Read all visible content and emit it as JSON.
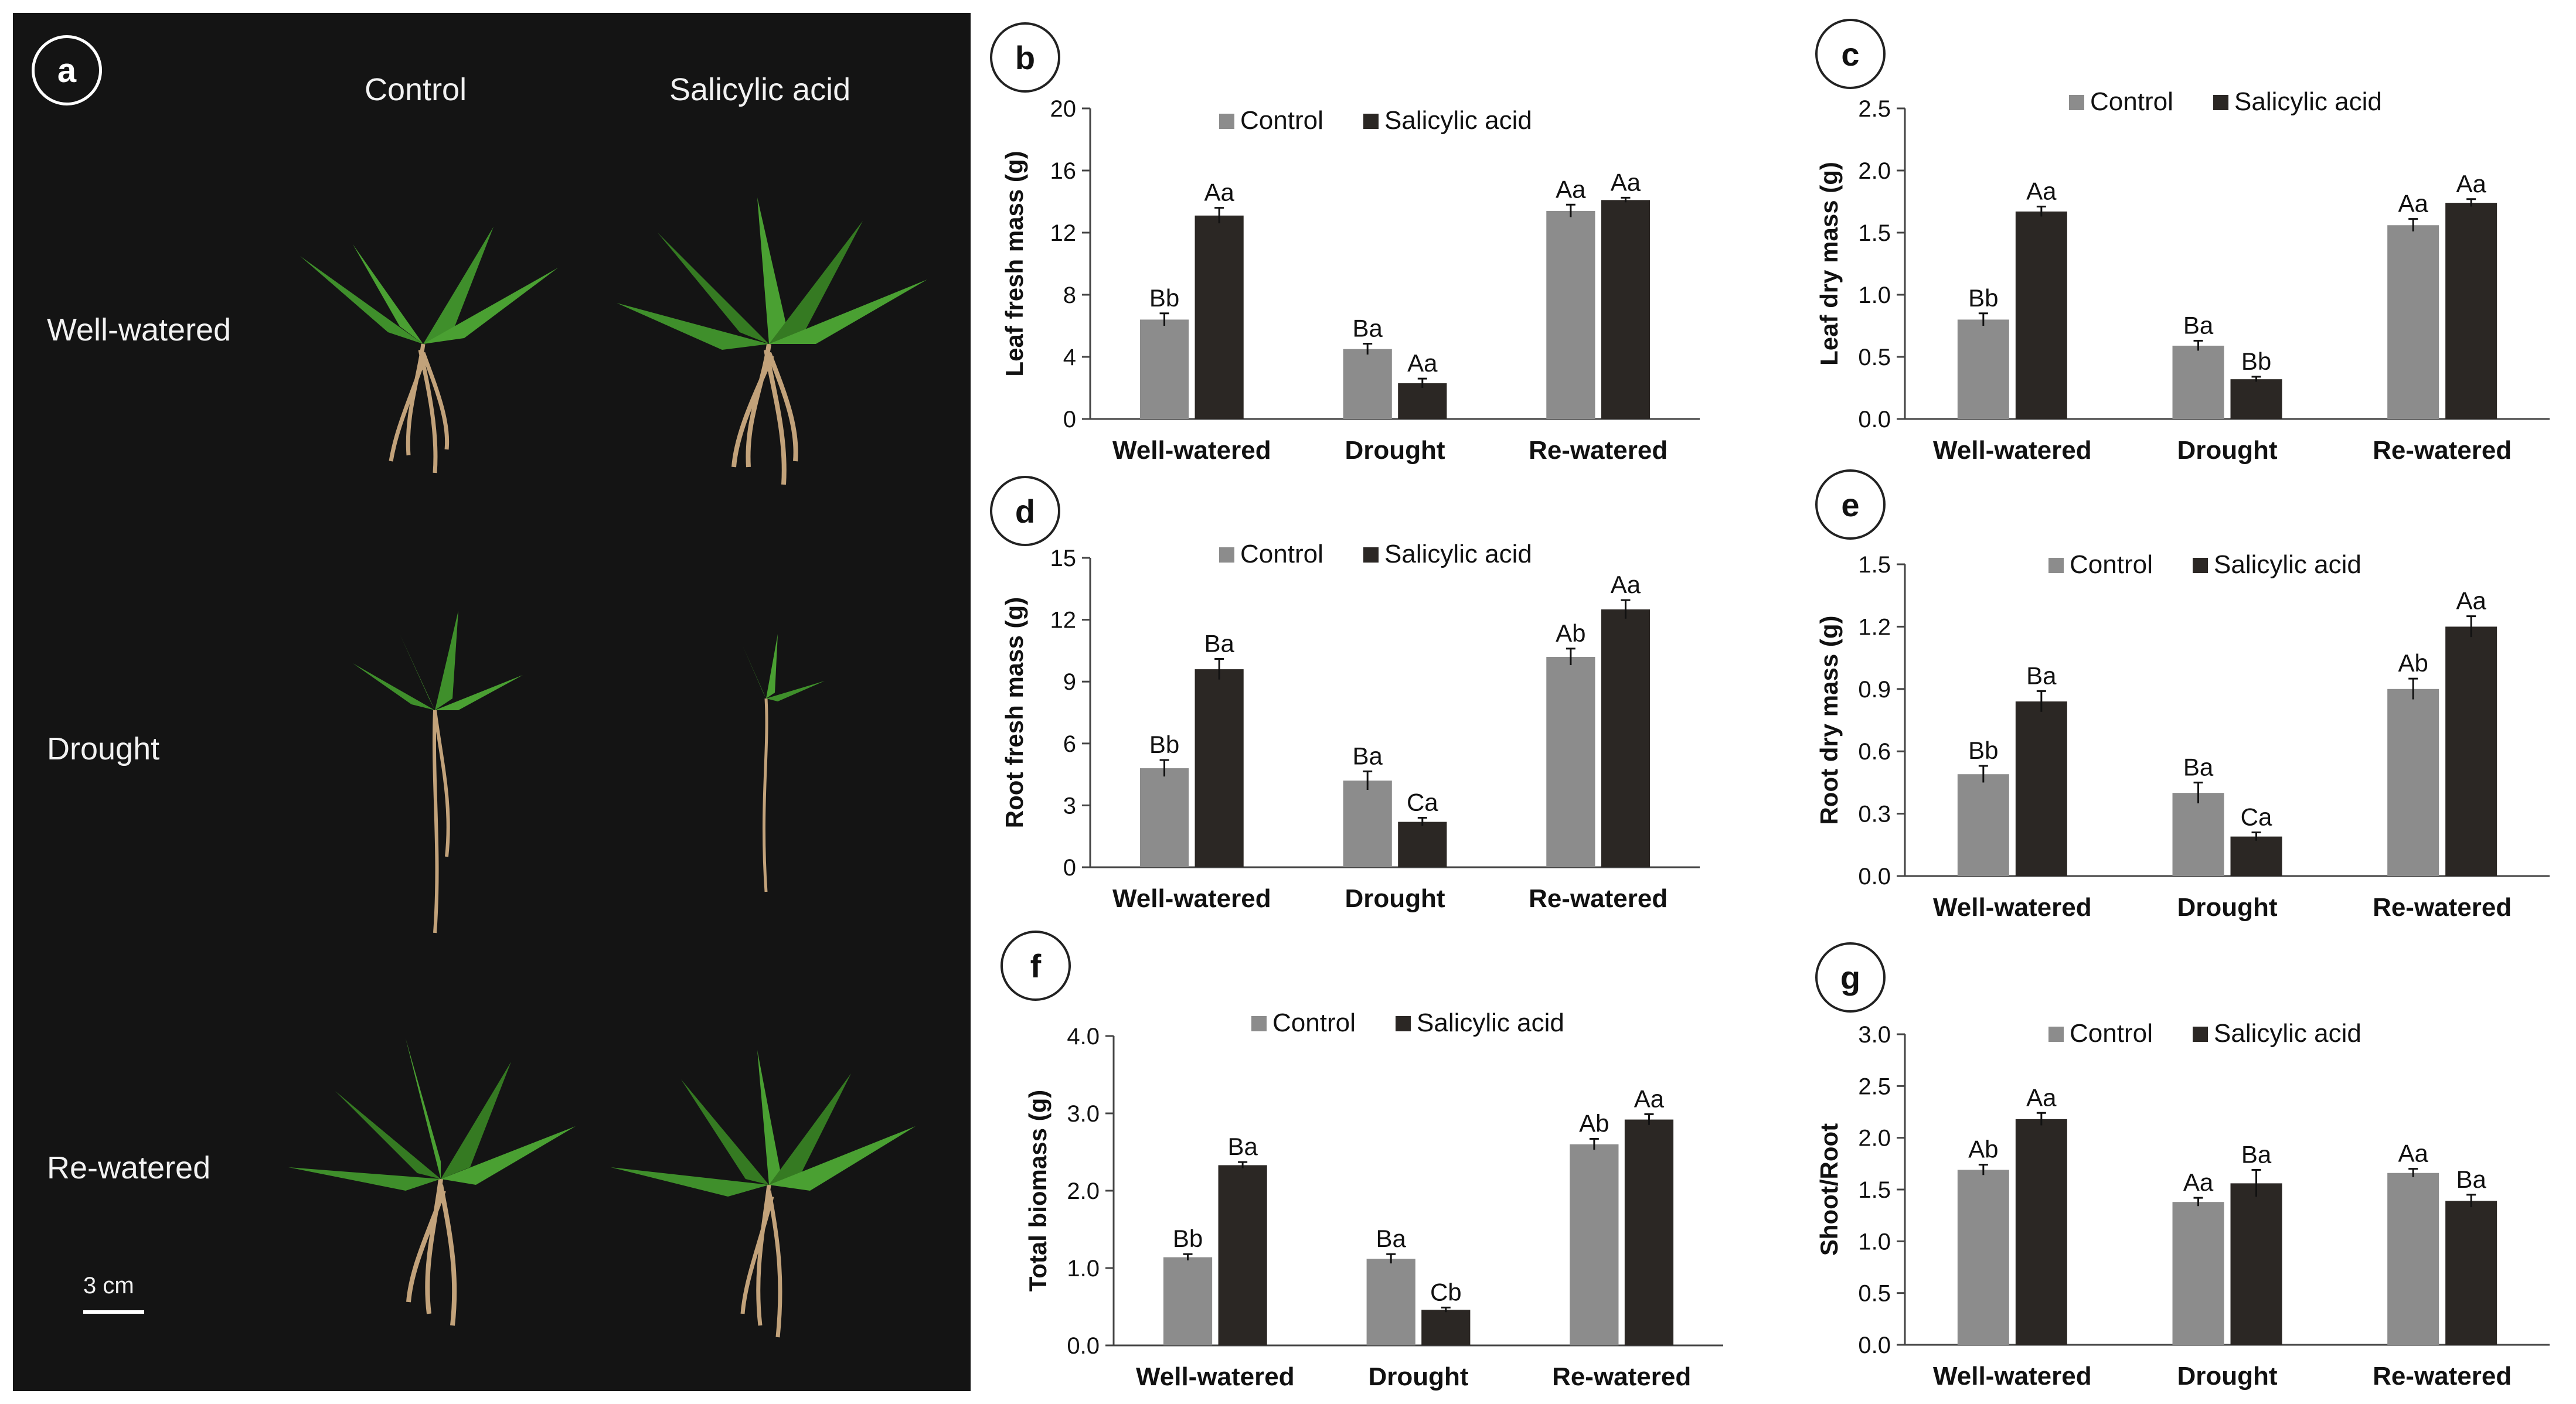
{
  "figure": {
    "photo_panel": {
      "badge": "a",
      "columns": [
        "Control",
        "Salicylic acid"
      ],
      "rows": [
        "Well-watered",
        "Drought",
        "Re-watered"
      ],
      "scale_bar": "3 cm"
    }
  },
  "colors": {
    "control": "#8c8c8c",
    "salicylic": "#2b2724",
    "photo_bg": "#141414",
    "leaf": "#3f8f2b",
    "root": "#c2a27a"
  },
  "chart_data": [
    {
      "badge": "b",
      "type": "bar",
      "categories": [
        "Well-watered",
        "Drought",
        "Re-watered"
      ],
      "series": [
        {
          "name": "Control",
          "values": [
            6.4,
            4.5,
            13.4
          ],
          "errors": [
            0.4,
            0.35,
            0.4
          ],
          "labels": [
            "Bb",
            "Ba",
            "Aa"
          ]
        },
        {
          "name": "Salicylic acid",
          "values": [
            13.1,
            2.3,
            14.1
          ],
          "errors": [
            0.5,
            0.3,
            0.15
          ],
          "labels": [
            "Aa",
            "Aa",
            "Aa"
          ]
        }
      ],
      "ylabel": "Leaf fresh mass (g)",
      "ylim": [
        0,
        20
      ],
      "yticks": [
        "0",
        "4",
        "8",
        "12",
        "16",
        "20"
      ]
    },
    {
      "badge": "c",
      "type": "bar",
      "categories": [
        "Well-watered",
        "Drought",
        "Re-watered"
      ],
      "series": [
        {
          "name": "Control",
          "values": [
            0.8,
            0.59,
            1.56
          ],
          "errors": [
            0.05,
            0.04,
            0.05
          ],
          "labels": [
            "Bb",
            "Ba",
            "Aa"
          ]
        },
        {
          "name": "Salicylic acid",
          "values": [
            1.67,
            0.32,
            1.74
          ],
          "errors": [
            0.04,
            0.02,
            0.03
          ],
          "labels": [
            "Aa",
            "Bb",
            "Aa"
          ]
        }
      ],
      "ylabel": "Leaf dry mass (g)",
      "ylim": [
        0,
        2.5
      ],
      "yticks": [
        "0.0",
        "0.5",
        "1.0",
        "1.5",
        "2.0",
        "2.5"
      ]
    },
    {
      "badge": "d",
      "type": "bar",
      "categories": [
        "Well-watered",
        "Drought",
        "Re-watered"
      ],
      "series": [
        {
          "name": "Control",
          "values": [
            4.8,
            4.2,
            10.2
          ],
          "errors": [
            0.4,
            0.45,
            0.4
          ],
          "labels": [
            "Bb",
            "Ba",
            "Ab"
          ]
        },
        {
          "name": "Salicylic acid",
          "values": [
            9.6,
            2.2,
            12.5
          ],
          "errors": [
            0.5,
            0.2,
            0.45
          ],
          "labels": [
            "Ba",
            "Ca",
            "Aa"
          ]
        }
      ],
      "ylabel": "Root fresh mass (g)",
      "ylim": [
        0,
        15
      ],
      "yticks": [
        "0",
        "3",
        "6",
        "9",
        "12",
        "15"
      ]
    },
    {
      "badge": "e",
      "type": "bar",
      "categories": [
        "Well-watered",
        "Drought",
        "Re-watered"
      ],
      "series": [
        {
          "name": "Control",
          "values": [
            0.49,
            0.4,
            0.9
          ],
          "errors": [
            0.04,
            0.05,
            0.05
          ],
          "labels": [
            "Bb",
            "Ba",
            "Ab"
          ]
        },
        {
          "name": "Salicylic acid",
          "values": [
            0.84,
            0.19,
            1.2
          ],
          "errors": [
            0.05,
            0.02,
            0.05
          ],
          "labels": [
            "Ba",
            "Ca",
            "Aa"
          ]
        }
      ],
      "ylabel": "Root dry mass (g)",
      "ylim": [
        0,
        1.5
      ],
      "yticks": [
        "0.0",
        "0.3",
        "0.6",
        "0.9",
        "1.2",
        "1.5"
      ]
    },
    {
      "badge": "f",
      "type": "bar",
      "categories": [
        "Well-watered",
        "Drought",
        "Re-watered"
      ],
      "series": [
        {
          "name": "Control",
          "values": [
            1.14,
            1.12,
            2.6
          ],
          "errors": [
            0.04,
            0.06,
            0.07
          ],
          "labels": [
            "Bb",
            "Ba",
            "Ab"
          ]
        },
        {
          "name": "Salicylic acid",
          "values": [
            2.33,
            0.46,
            2.92
          ],
          "errors": [
            0.04,
            0.03,
            0.07
          ],
          "labels": [
            "Ba",
            "Cb",
            "Aa"
          ]
        }
      ],
      "ylabel": "Total biomass (g)",
      "ylim": [
        0,
        4
      ],
      "yticks": [
        "0.0",
        "1.0",
        "2.0",
        "3.0",
        "4.0"
      ]
    },
    {
      "badge": "g",
      "type": "bar",
      "categories": [
        "Well-watered",
        "Drought",
        "Re-watered"
      ],
      "series": [
        {
          "name": "Control",
          "values": [
            1.69,
            1.38,
            1.66
          ],
          "errors": [
            0.05,
            0.04,
            0.04
          ],
          "labels": [
            "Ab",
            "Aa",
            "Aa"
          ]
        },
        {
          "name": "Salicylic acid",
          "values": [
            2.18,
            1.56,
            1.39
          ],
          "errors": [
            0.06,
            0.13,
            0.06
          ],
          "labels": [
            "Aa",
            "Ba",
            "Ba"
          ]
        }
      ],
      "ylabel": "Shoot/Root",
      "ylim": [
        0,
        3
      ],
      "yticks": [
        "0.0",
        "0.5",
        "1.0",
        "1.5",
        "2.0",
        "2.5",
        "3.0"
      ]
    }
  ]
}
